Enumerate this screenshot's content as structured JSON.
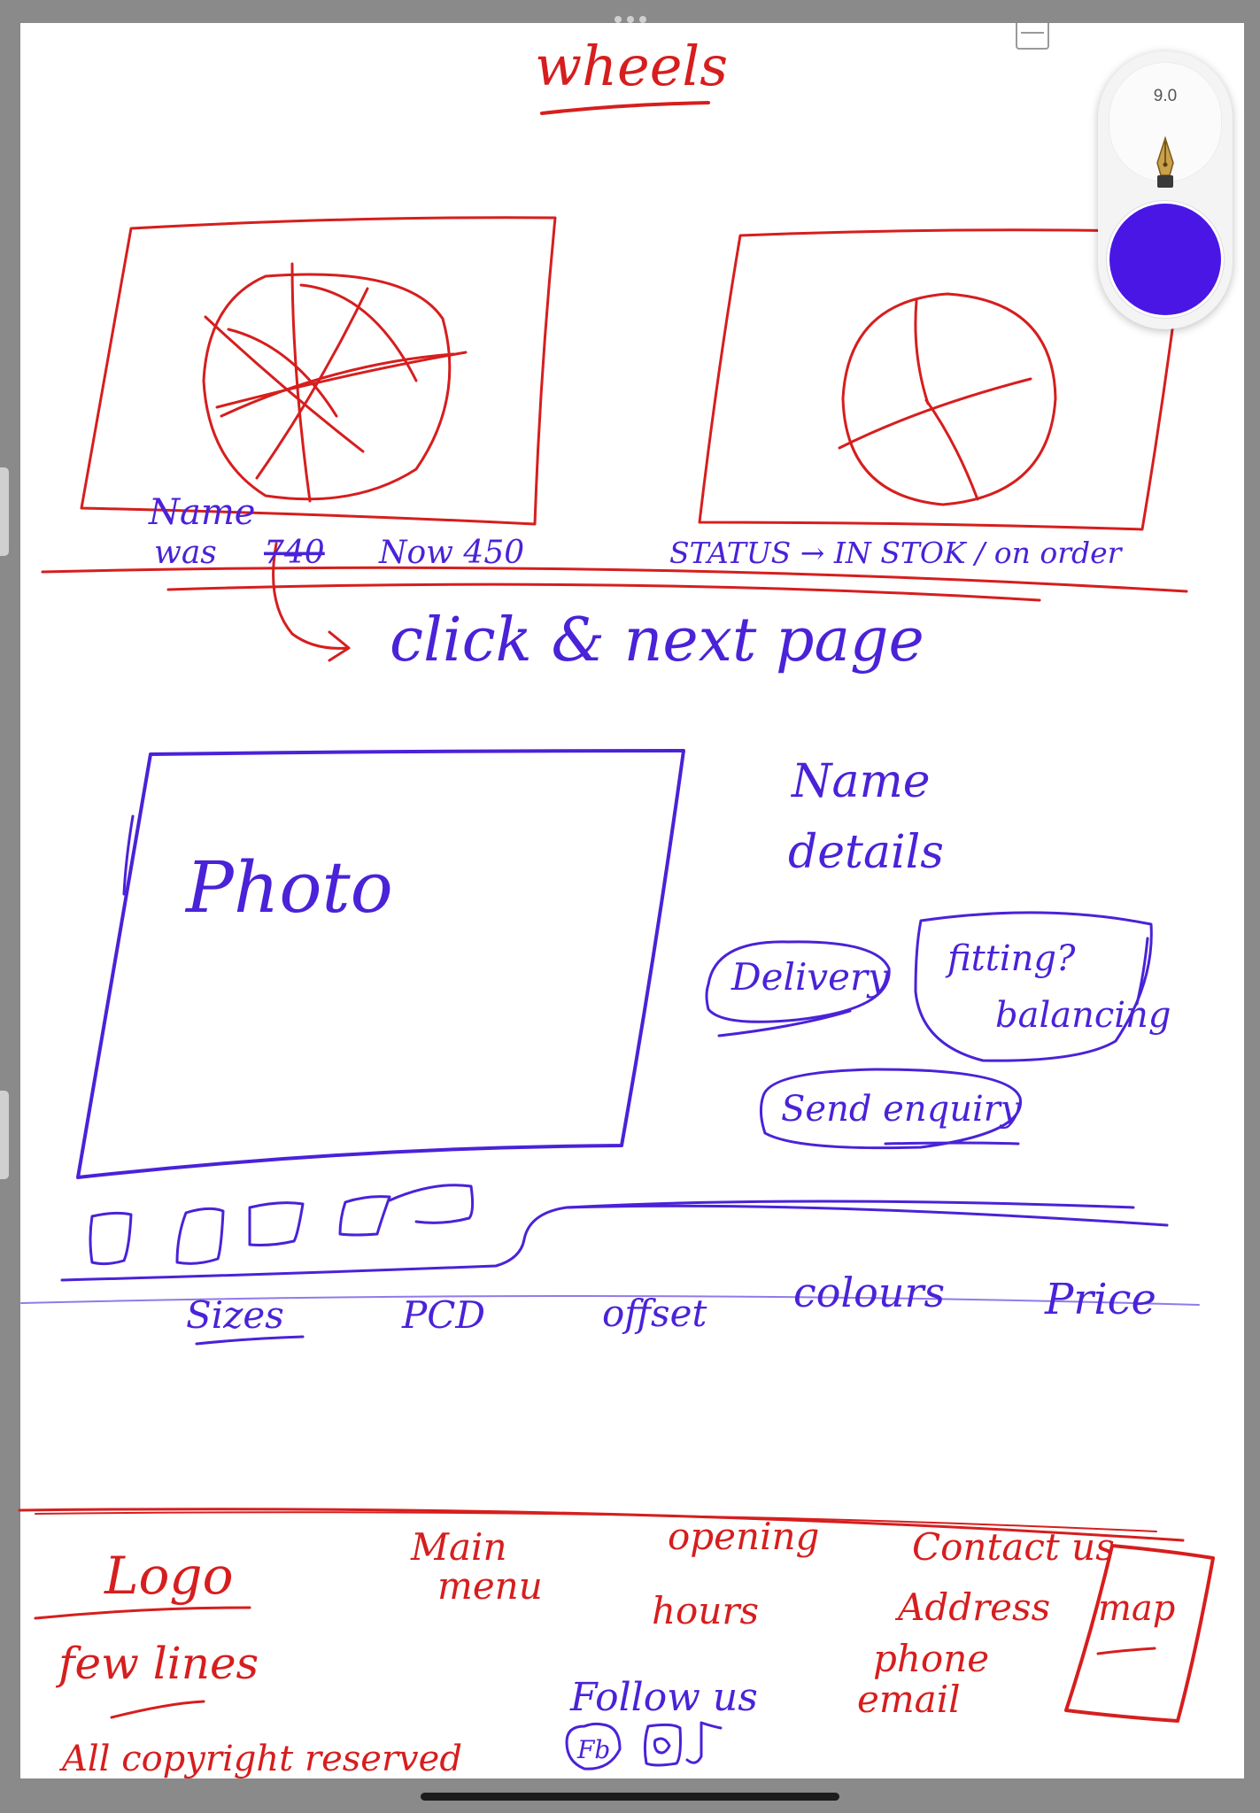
{
  "app": {
    "pen_size": "9.0",
    "tools": {
      "pen": "fountain-pen-icon",
      "save": "save-icon"
    },
    "colors": {
      "ink_red": "#d61e1e",
      "ink_blue": "#4a22d8",
      "active_swatch": "#4a16e6"
    }
  },
  "sketch": {
    "title": "wheels",
    "listing": {
      "name_label": "Name",
      "price_was": "was",
      "price_old": "740",
      "price_now": "Now 450",
      "status": "STATUS → IN STOK / on order",
      "annotation": "click & next page"
    },
    "product": {
      "photo_label": "Photo",
      "name_label": "Name",
      "details_label": "details",
      "delivery_button": "Delivery",
      "fitting_button_line1": "fitting?",
      "fitting_button_line2": "balancing",
      "enquiry_button": "Send enquiry",
      "tabs": [
        "Sizes",
        "PCD",
        "offset",
        "colours",
        "Price"
      ]
    },
    "footer": {
      "logo": "Logo",
      "logo_sub": "few lines",
      "copyright": "All copyright reserved",
      "main_menu_line1": "Main",
      "main_menu_line2": "menu",
      "opening_line1": "opening",
      "opening_line2": "hours",
      "follow": "Follow us",
      "social_fb": "Fb",
      "contact": "Contact us",
      "address": "Address",
      "phone": "phone",
      "email": "email",
      "map": "map"
    }
  }
}
